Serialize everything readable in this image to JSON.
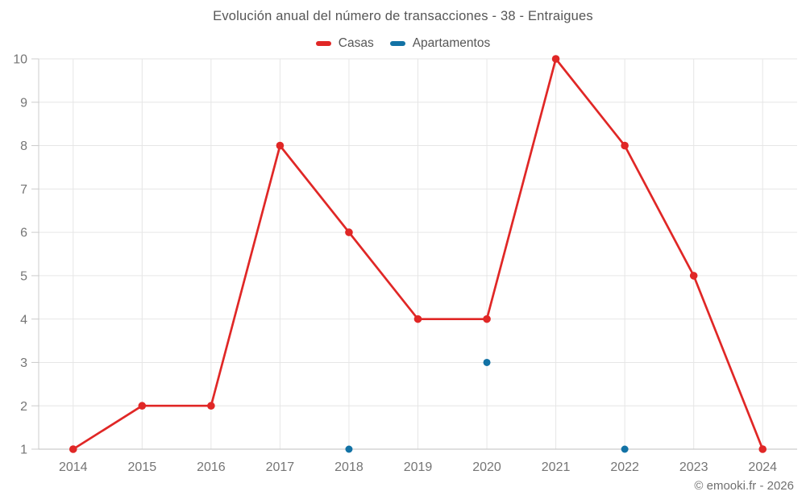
{
  "header": {
    "title": "Evolución anual del número de transacciones - 38 - Entraigues"
  },
  "legend": {
    "items": [
      {
        "label": "Casas",
        "color": "#e02726"
      },
      {
        "label": "Apartamentos",
        "color": "#1272a5"
      }
    ]
  },
  "footer": {
    "text": "© emooki.fr - 2026"
  },
  "chart_data": {
    "type": "line",
    "title": "Evolución anual del número de transacciones - 38 - Entraigues",
    "categories": [
      "2014",
      "2015",
      "2016",
      "2017",
      "2018",
      "2019",
      "2020",
      "2021",
      "2022",
      "2023",
      "2024"
    ],
    "series": [
      {
        "name": "Casas",
        "color": "#e02726",
        "mode": "line+markers",
        "marker_radius": 4.8,
        "values": [
          1,
          2,
          2,
          8,
          6,
          4,
          4,
          10,
          8,
          5,
          1
        ]
      },
      {
        "name": "Apartamentos",
        "color": "#1272a5",
        "mode": "markers",
        "marker_radius": 4.5,
        "values": [
          null,
          null,
          null,
          null,
          1,
          null,
          3,
          null,
          1,
          null,
          null
        ]
      }
    ],
    "ylim": [
      1,
      10
    ],
    "yticks": [
      1,
      2,
      3,
      4,
      5,
      6,
      7,
      8,
      9,
      10
    ],
    "grid": true,
    "legend_position": "top",
    "xlabel": "",
    "ylabel": "",
    "colors": {
      "grid": "#e6e6e6",
      "axis": "#cccccc",
      "tick_label": "#757575"
    }
  }
}
